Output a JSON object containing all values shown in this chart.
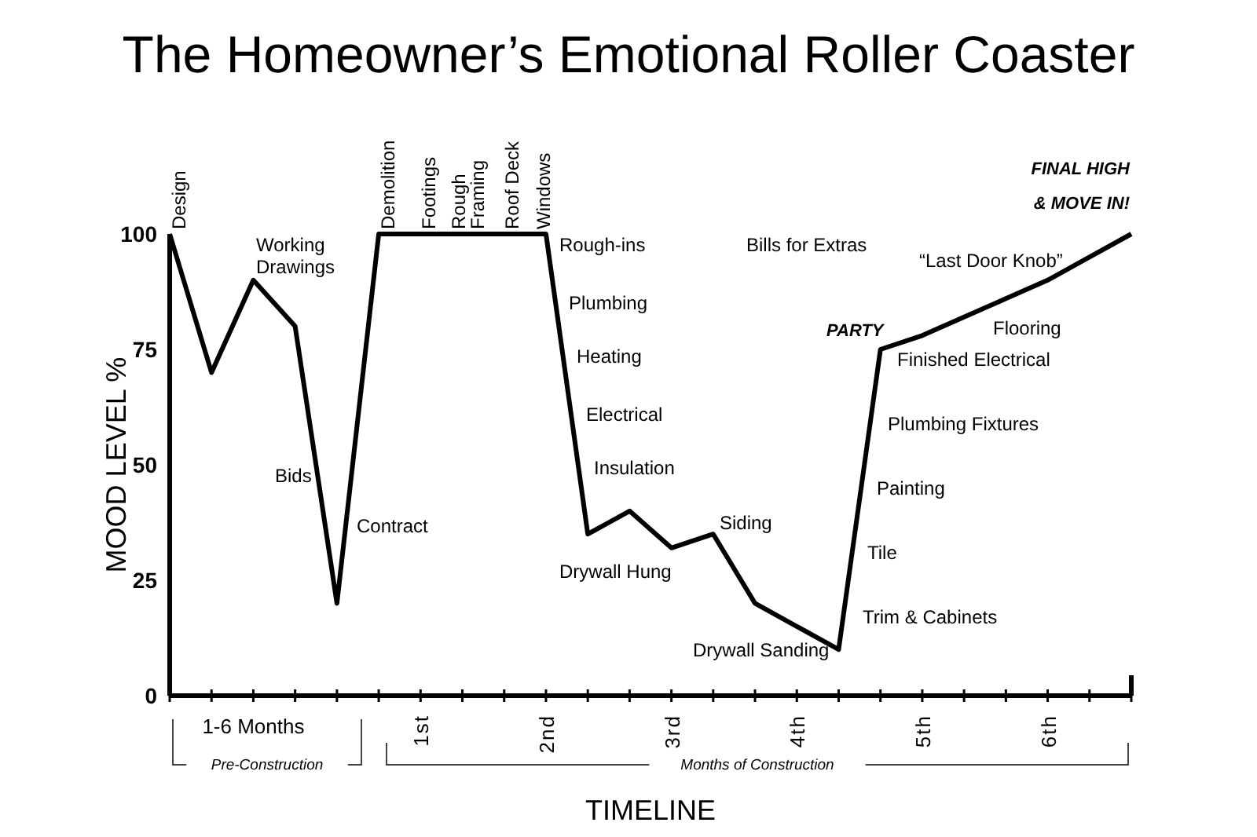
{
  "chart_data": {
    "type": "line",
    "title": "The Homeowner’s Emotional Roller Coaster",
    "xlabel": "TIMELINE",
    "ylabel": "MOOD LEVEL %",
    "categories": [
      null,
      null,
      "1-6 Months",
      null,
      null,
      null,
      "1st",
      null,
      null,
      "2nd",
      null,
      null,
      "3rd",
      null,
      null,
      "4th",
      null,
      null,
      "5th",
      null,
      null,
      "6th",
      null,
      null
    ],
    "series": [
      {
        "color": "#000000",
        "values": [
          100,
          70,
          90,
          80,
          20,
          100,
          100,
          100,
          100,
          100,
          35,
          40,
          32,
          35,
          20,
          15,
          10,
          75,
          78,
          82,
          86,
          90,
          95,
          100
        ]
      }
    ],
    "marker": "none",
    "line_style": "solid",
    "grid": false,
    "ylim": [
      0,
      100
    ],
    "yticks": [
      0,
      25,
      50,
      75,
      100
    ],
    "annotations": [
      "Design",
      "Demolition",
      "Footings",
      "Rough Framing",
      "Roof Deck",
      "Windows",
      "Pre-Construction",
      "Months of Construction",
      "Working\nDrawings",
      "Bids",
      "Contract",
      "Rough-ins",
      "Plumbing",
      "Heating",
      "Electrical",
      "Insulation",
      "Drywall Hung",
      "Siding",
      "Drywall Sanding",
      "Bills for Extras",
      "PARTY",
      "“Last Door Knob”",
      "Flooring",
      "Finished Electrical",
      "Plumbing Fixtures",
      "Painting",
      "Tile",
      "Trim & Cabinets",
      "FINAL HIGH\n& MOVE IN!"
    ]
  }
}
